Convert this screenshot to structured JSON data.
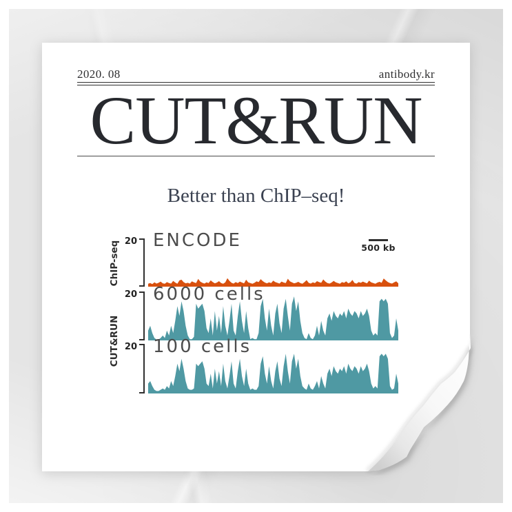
{
  "page": {
    "date": "2020. 08",
    "site": "antibody.kr",
    "title": "CUT&RUN",
    "subtitle": "Better than ChIP–seq!"
  },
  "figure": {
    "scale_bar_label": "500 kb",
    "colors": {
      "chipseq_track": "#d8500e",
      "cutrun_track": "#4f99a3",
      "axis": "#2f2f2f",
      "track_label": "#4c4c4c"
    }
  },
  "chart_data": {
    "type": "area",
    "description": "Genome-browser style signal tracks comparing ChIP-seq and CUT&RUN",
    "y_axis_max": 20,
    "scale_bar": "500 kb",
    "groups": [
      {
        "label": "ChIP-seq",
        "tracks": [
          {
            "name": "ENCODE",
            "y_axis_max": 20,
            "color": "#d8500e",
            "values": [
              1.2,
              1.5,
              1.1,
              1.8,
              1.3,
              1.6,
              2.1,
              1.4,
              1.2,
              1.9,
              1.5,
              1.3,
              2.4,
              1.7,
              1.2,
              2.6,
              2.9,
              1.9,
              1.4,
              1.6,
              1.3,
              2.2,
              1.8,
              1.5,
              3.2,
              2.1,
              1.6,
              1.3,
              1.8,
              1.5,
              2.6,
              1.9,
              1.4,
              1.7,
              2.3,
              1.5,
              1.2,
              1.8,
              3.5,
              2.4,
              1.6,
              1.3,
              1.9,
              1.5,
              2.1,
              1.7,
              1.4,
              2.9,
              1.8,
              1.5,
              1.2,
              1.6,
              2.2,
              1.9,
              3.1,
              2.3,
              1.7,
              1.4,
              1.8,
              1.5,
              2.5,
              1.9,
              1.6,
              1.3,
              2.1,
              1.7,
              1.5,
              3.3,
              2.2,
              1.8,
              1.4,
              1.6,
              2.0,
              1.5,
              1.2,
              1.9,
              2.7,
              1.6,
              1.3,
              1.8,
              1.5,
              2.3,
              1.9,
              1.6,
              3.0,
              2.1,
              1.5,
              1.3,
              1.7,
              2.4,
              1.8,
              1.5,
              1.2,
              1.9,
              1.6,
              2.2,
              1.4,
              1.8,
              2.8,
              1.5,
              1.3,
              1.9,
              1.6,
              2.1,
              1.7,
              1.4,
              2.5,
              1.8,
              1.5,
              1.2,
              1.7,
              2.0,
              1.6,
              3.4,
              2.6,
              1.9,
              1.5,
              1.3,
              1.8,
              2.2,
              1.4
            ]
          }
        ]
      },
      {
        "label": "CUT&RUN",
        "tracks": [
          {
            "name": "6000 cells",
            "y_axis_max": 20,
            "color": "#4f99a3",
            "values": [
              4,
              6,
              3,
              1,
              0.4,
              0.4,
              1,
              2,
              1,
              4,
              2,
              6,
              3,
              8,
              14,
              10,
              16,
              12,
              6,
              2,
              0.5,
              0.5,
              1.5,
              15,
              13,
              14,
              15,
              12,
              5,
              3,
              9,
              2,
              12,
              4,
              10,
              3,
              14,
              6,
              2,
              8,
              15,
              4,
              2,
              10,
              16,
              8,
              3,
              12,
              5,
              0.5,
              1,
              0.5,
              0.5,
              3,
              14,
              17,
              9,
              4,
              13,
              6,
              2,
              11,
              15,
              7,
              3,
              13,
              17,
              10,
              4,
              15,
              18,
              12,
              16,
              8,
              3,
              1,
              0.5,
              3,
              1,
              0.5,
              2,
              6,
              2,
              8,
              4,
              2,
              9,
              11,
              8,
              12,
              10,
              9,
              11,
              10,
              12,
              9,
              13,
              11,
              10,
              12,
              11,
              9,
              12,
              10,
              11,
              13,
              10,
              4,
              2,
              3,
              2,
              16,
              17,
              16,
              17,
              15,
              3,
              1,
              2,
              9,
              4
            ]
          },
          {
            "name": "100 cells",
            "y_axis_max": 20,
            "color": "#4f99a3",
            "values": [
              4,
              5,
              3,
              1.5,
              1,
              1,
              1.5,
              2,
              1.5,
              3,
              2,
              5,
              3,
              7,
              12,
              9,
              14,
              10,
              5,
              2,
              1.5,
              1.5,
              2,
              12,
              11,
              12,
              13,
              10,
              4,
              3,
              8,
              2,
              10,
              4,
              9,
              3,
              12,
              5,
              2,
              7,
              13,
              4,
              2,
              9,
              14,
              7,
              3,
              10,
              4,
              1.5,
              2,
              1.5,
              1.5,
              3,
              12,
              15,
              8,
              4,
              11,
              5,
              2,
              9,
              13,
              6,
              3,
              11,
              16,
              9,
              4,
              13,
              16,
              10,
              14,
              7,
              3,
              2,
              1.5,
              4,
              2,
              1.5,
              3,
              5,
              2,
              7,
              4,
              2,
              8,
              10,
              7,
              11,
              9,
              8,
              10,
              9,
              11,
              8,
              12,
              10,
              9,
              11,
              10,
              8,
              11,
              9,
              10,
              12,
              9,
              4,
              2,
              3,
              2,
              15,
              16,
              15,
              16,
              14,
              3,
              1.5,
              2,
              8,
              4
            ]
          }
        ]
      }
    ]
  }
}
